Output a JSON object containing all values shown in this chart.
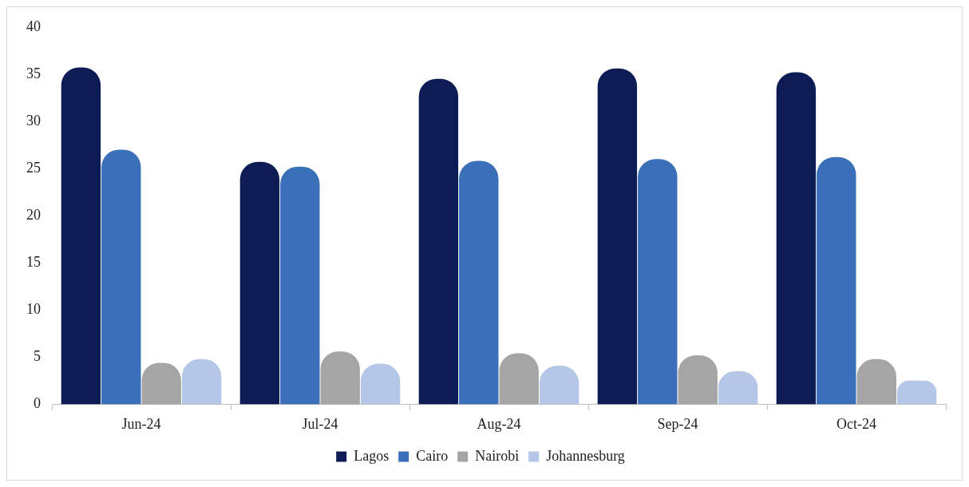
{
  "chart_data": {
    "type": "bar",
    "categories": [
      "Jun-24",
      "Jul-24",
      "Aug-24",
      "Sep-24",
      "Oct-24"
    ],
    "series": [
      {
        "name": "Lagos",
        "color": "#0d1c54",
        "values": [
          35.7,
          25.7,
          34.5,
          35.6,
          35.2
        ]
      },
      {
        "name": "Cairo",
        "color": "#3a70b8",
        "values": [
          27,
          25.2,
          25.8,
          26,
          26.2
        ]
      },
      {
        "name": "Nairobi",
        "color": "#a5a5a5",
        "values": [
          4.4,
          5.6,
          5.4,
          5.2,
          4.8
        ]
      },
      {
        "name": "Johannesburg",
        "color": "#b4c7e6",
        "values": [
          4.8,
          4.3,
          4.1,
          3.5,
          2.5
        ]
      }
    ],
    "ylim": [
      0,
      40
    ],
    "yticks": [
      0,
      5,
      10,
      15,
      20,
      25,
      30,
      35,
      40
    ],
    "grid": false,
    "legend": "bottom"
  }
}
